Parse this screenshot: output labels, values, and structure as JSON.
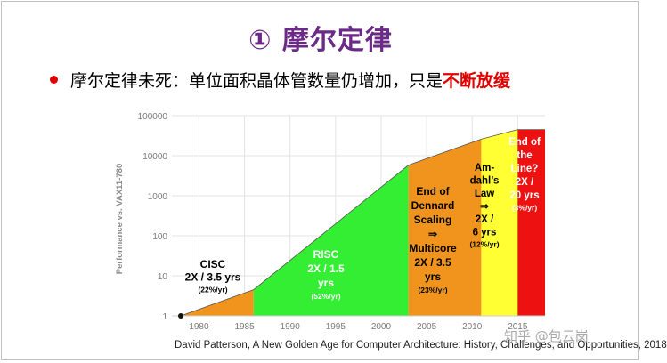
{
  "slide": {
    "title": "① 摩尔定律",
    "bullet_prefix": "摩尔定律未死：单位面积晶体管数量仍增加，只是",
    "bullet_emphasis": "不断放缓",
    "caption": "David Patterson, A New Golden Age for Computer Architecture: History, Challenges, and Opportunities, 2018",
    "watermark": "知乎 @包云岗"
  },
  "chart_data": {
    "type": "area",
    "title": "",
    "xlabel": "",
    "ylabel": "Performance vs. VAX11-780",
    "y_scale": "log",
    "ylim": [
      1,
      100000
    ],
    "xlim": [
      1978,
      2018
    ],
    "x_ticks": [
      "1980",
      "1985",
      "1990",
      "1995",
      "2000",
      "2005",
      "2010",
      "2015"
    ],
    "y_ticks": [
      "100000",
      "10000",
      "1000",
      "100",
      "10",
      "1"
    ],
    "grid": true,
    "curve": [
      {
        "year": 1978,
        "value": 1
      },
      {
        "year": 1986,
        "value": 4.5
      },
      {
        "year": 2003,
        "value": 5800
      },
      {
        "year": 2011,
        "value": 26000
      },
      {
        "year": 2015,
        "value": 45000
      },
      {
        "year": 2018,
        "value": 45000
      }
    ],
    "regions": [
      {
        "name": "cisc",
        "x_start": 1978,
        "x_end": 1986,
        "color": "#f0941e",
        "label_lines": [
          "CISC",
          "2X / 3.5 yrs"
        ],
        "rate": "(22%/yr)",
        "text_color": "#000000"
      },
      {
        "name": "risc",
        "x_start": 1986,
        "x_end": 2003,
        "color": "#33ee33",
        "label_lines": [
          "RISC",
          "2X / 1.5",
          "yrs"
        ],
        "rate": "(52%/yr)",
        "text_color": "#ffffff"
      },
      {
        "name": "dennard",
        "x_start": 2003,
        "x_end": 2011,
        "color": "#f0941e",
        "label_lines": [
          "End of",
          "Dennard",
          "Scaling",
          "⇒",
          "Multicore",
          "2X / 3.5",
          "yrs"
        ],
        "rate": "(23%/yr)",
        "text_color": "#000000"
      },
      {
        "name": "amdahl",
        "x_start": 2011,
        "x_end": 2015,
        "color": "#ffff33",
        "label_lines": [
          "Am-",
          "dahl’s",
          "Law",
          "⇒",
          "2X /",
          "6 yrs"
        ],
        "rate": "(12%/yr)",
        "text_color": "#000000"
      },
      {
        "name": "end-of-line",
        "x_start": 2015,
        "x_end": 2018,
        "color": "#ee1111",
        "label_lines": [
          "End of",
          "the",
          "Line?",
          "2X /",
          "20 yrs"
        ],
        "rate": "(3%/yr)",
        "text_color": "#ffffff"
      }
    ]
  }
}
